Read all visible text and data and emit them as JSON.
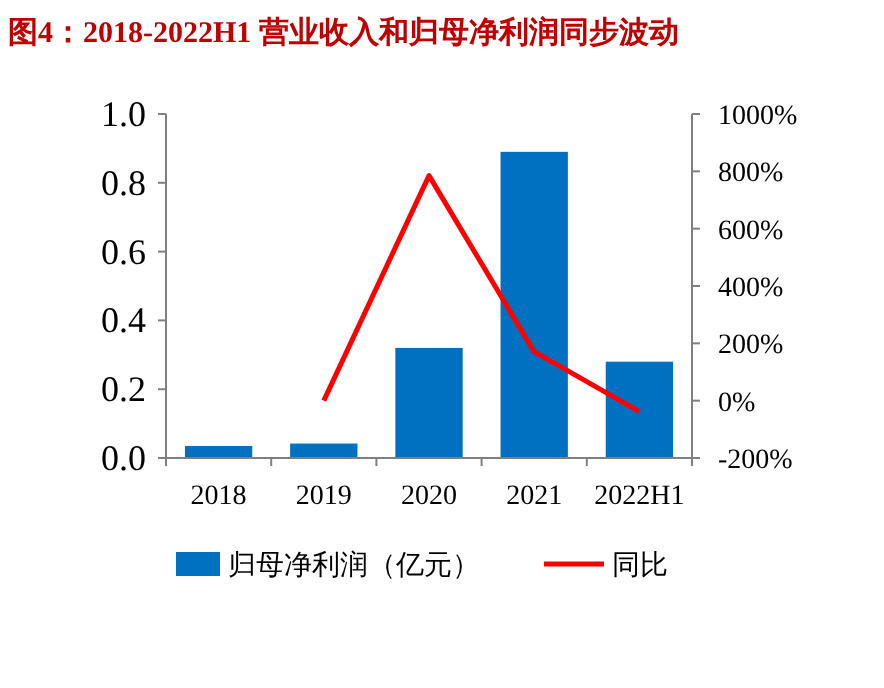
{
  "chart_data": {
    "type": "bar",
    "title": "图4：2018-2022H1 营业收入和归母净利润同步波动",
    "categories": [
      "2018",
      "2019",
      "2020",
      "2021",
      "2022H1"
    ],
    "series": [
      {
        "name": "归母净利润（亿元）",
        "color": "#0070c0",
        "values": [
          0.035,
          0.042,
          0.32,
          0.89,
          0.28
        ]
      },
      {
        "name": "同比",
        "type": "line",
        "axis": "y2",
        "color": "#ff0000",
        "values": [
          null,
          0,
          785,
          171,
          -38
        ]
      }
    ],
    "ylim": [
      0,
      1.0
    ],
    "yticks": [
      {
        "value": 0,
        "label": "0.0"
      },
      {
        "value": 0.2,
        "label": "0.2"
      },
      {
        "value": 0.4,
        "label": "0.4"
      },
      {
        "value": 0.6,
        "label": "0.6"
      },
      {
        "value": 0.8,
        "label": "0.8"
      },
      {
        "value": 1.0,
        "label": "1.0"
      }
    ],
    "y2lim": [
      -200,
      1000
    ],
    "y2ticks": [
      {
        "value": -200,
        "label": "-200%"
      },
      {
        "value": 0,
        "label": "0%"
      },
      {
        "value": 200,
        "label": "200%"
      },
      {
        "value": 400,
        "label": "400%"
      },
      {
        "value": 600,
        "label": "600%"
      },
      {
        "value": 800,
        "label": "800%"
      },
      {
        "value": 1000,
        "label": "1000%"
      }
    ],
    "grid": false,
    "legend": "bottom"
  }
}
